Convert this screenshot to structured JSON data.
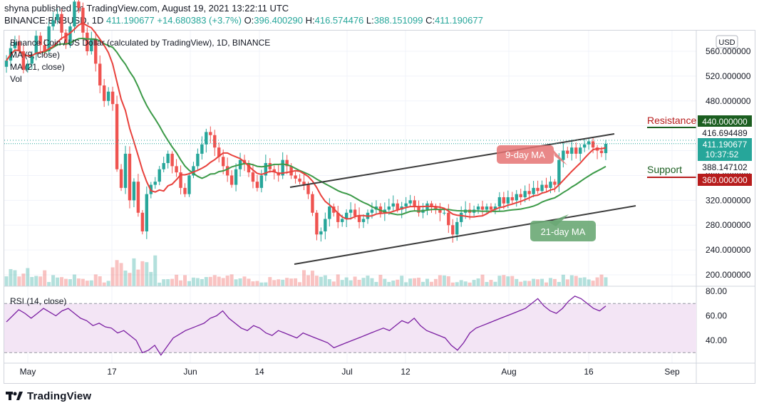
{
  "header": {
    "publish_line": "shyna published on TradingView.com, August 19, 2021 13:22:11 UTC",
    "symbol": "BINANCE:BNBUSD, 1D",
    "last": "411.190677",
    "change": "+14.680383 (+3.7%)",
    "o_label": "O:",
    "o": "396.400290",
    "h_label": "H:",
    "h": "416.574476",
    "l_label": "L:",
    "l": "388.151099",
    "c_label": "C:",
    "c": "411.190677"
  },
  "legend": {
    "title": "Binance Coin / US Dollar (calculated by TradingView), 1D, BINANCE",
    "ma9": "MA (9, close)",
    "ma21": "MA (21, close)",
    "vol": "Vol"
  },
  "currency": "USD",
  "annotations": {
    "resistance": "Resistance",
    "support": "Support",
    "ma9_label": "9-day MA",
    "ma21_label": "21-day MA"
  },
  "price_badges": {
    "resistance": "440.000000",
    "high_line": "416.694489",
    "last": "411.190677",
    "countdown": "10:37:52",
    "low_line": "388.147102",
    "support": "360.000000"
  },
  "rsi_label": "RSI (14, close)",
  "footer_brand": "TradingView",
  "colors": {
    "up": "#26a69a",
    "down": "#ef5350",
    "ma9": "#e8413c",
    "ma21": "#3c9a48",
    "resistance": "#1b5e20",
    "support": "#b71c1c",
    "rsi": "#7b1fa2",
    "rsi_band": "#f3e5f5"
  },
  "chart_data": [
    {
      "type": "candlestick",
      "title": "Binance Coin / US Dollar (calculated by TradingView), 1D, BINANCE",
      "x_ticks": [
        "May",
        "17",
        "Jun",
        "14",
        "Jul",
        "12",
        "Aug",
        "16",
        "Sep"
      ],
      "y_ticks": [
        "560.000000",
        "520.000000",
        "480.000000",
        "440.000000",
        "400.000000",
        "360.000000",
        "320.000000",
        "280.000000",
        "240.000000",
        "200.000000"
      ],
      "ylim": [
        180,
        580
      ],
      "closes": [
        545,
        565,
        575,
        560,
        530,
        540,
        555,
        585,
        570,
        560,
        600,
        610,
        620,
        590,
        570,
        600,
        640,
        630,
        590,
        560,
        580,
        540,
        505,
        480,
        495,
        475,
        370,
        340,
        395,
        320,
        350,
        300,
        270,
        330,
        345,
        350,
        370,
        380,
        395,
        375,
        365,
        340,
        330,
        360,
        375,
        395,
        410,
        430,
        425,
        405,
        390,
        375,
        360,
        345,
        370,
        385,
        380,
        365,
        350,
        340,
        360,
        380,
        370,
        365,
        360,
        385,
        375,
        360,
        355,
        350,
        345,
        330,
        300,
        265,
        270,
        290,
        310,
        300,
        285,
        290,
        300,
        305,
        295,
        285,
        290,
        300,
        305,
        310,
        300,
        305,
        310,
        315,
        305,
        310,
        315,
        320,
        310,
        300,
        305,
        315,
        310,
        305,
        300,
        300,
        280,
        265,
        285,
        300,
        305,
        300,
        305,
        310,
        305,
        310,
        305,
        310,
        325,
        315,
        325,
        320,
        330,
        325,
        335,
        330,
        340,
        335,
        345,
        340,
        350,
        345,
        385,
        400,
        395,
        405,
        395,
        405,
        410,
        415,
        405,
        400,
        396,
        411
      ],
      "ma9_end": 398,
      "ma21_end": 372,
      "resistance": 440,
      "support": 360,
      "trend_upper": [
        [
          320,
          312
        ],
        [
          420,
          362
        ]
      ],
      "trend_lower": [
        [
          270,
          362
        ],
        [
          400,
          221
        ]
      ]
    },
    {
      "type": "line",
      "name": "RSI (14, close)",
      "y_ticks": [
        "80.00",
        "60.00",
        "40.00"
      ],
      "ylim": [
        25,
        82
      ],
      "band": [
        30,
        70
      ],
      "values": [
        55,
        60,
        65,
        62,
        58,
        62,
        66,
        63,
        60,
        64,
        66,
        62,
        58,
        56,
        52,
        54,
        51,
        50,
        46,
        48,
        44,
        40,
        30,
        32,
        36,
        28,
        35,
        42,
        45,
        48,
        50,
        52,
        54,
        58,
        60,
        64,
        58,
        54,
        50,
        48,
        52,
        50,
        46,
        44,
        48,
        46,
        44,
        42,
        46,
        44,
        42,
        40,
        38,
        34,
        36,
        38,
        40,
        42,
        44,
        46,
        48,
        50,
        48,
        52,
        56,
        54,
        58,
        52,
        48,
        46,
        44,
        42,
        36,
        32,
        38,
        46,
        50,
        52,
        54,
        56,
        58,
        60,
        62,
        64,
        66,
        70,
        74,
        68,
        64,
        62,
        66,
        72,
        76,
        74,
        70,
        66,
        64,
        68
      ]
    }
  ]
}
